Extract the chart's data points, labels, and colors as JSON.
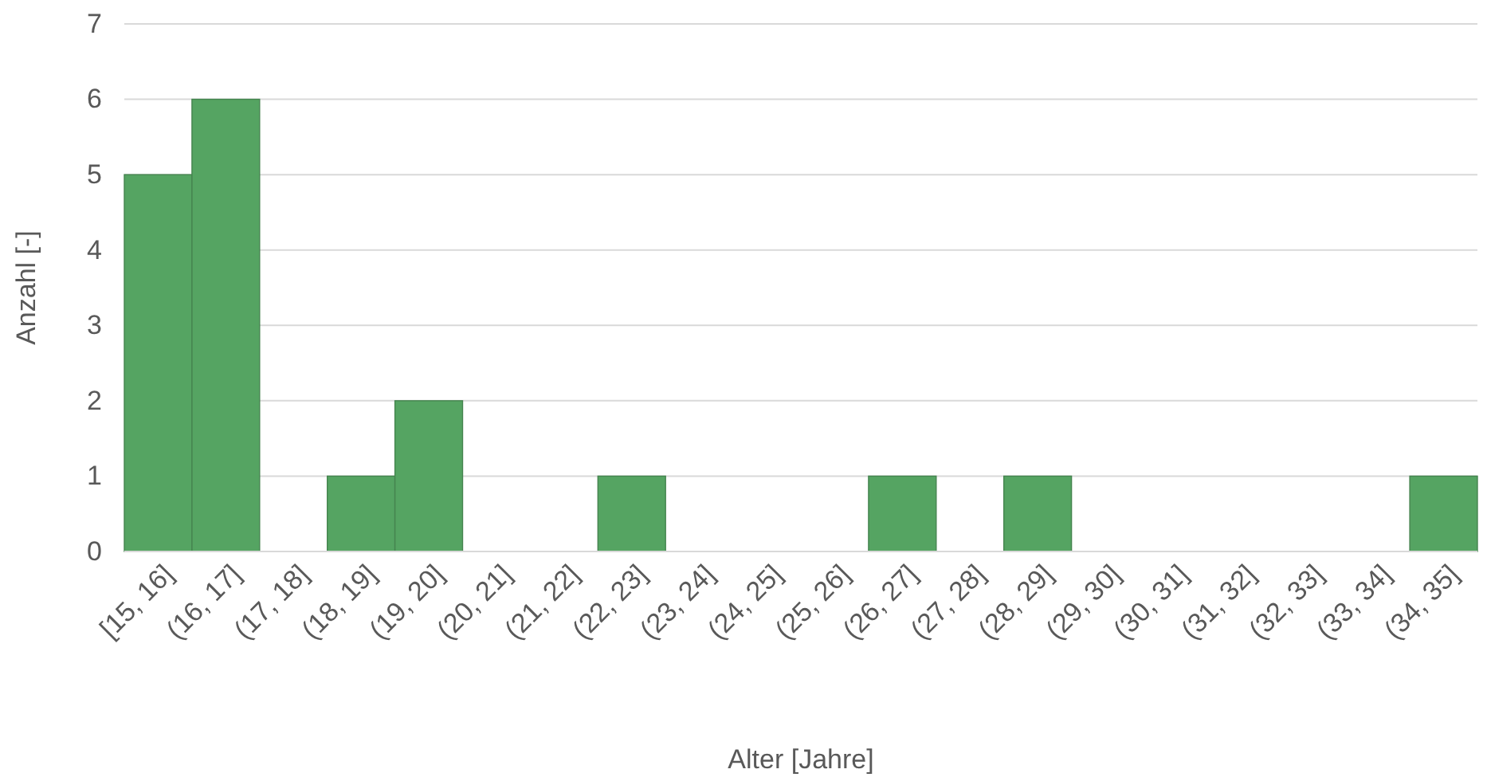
{
  "chart_data": {
    "type": "bar",
    "xlabel": "Alter [Jahre]",
    "ylabel": "Anzahl [-]",
    "categories": [
      "[15, 16]",
      "(16, 17]",
      "(17, 18]",
      "(18, 19]",
      "(19, 20]",
      "(20, 21]",
      "(21, 22]",
      "(22, 23]",
      "(23, 24]",
      "(24, 25]",
      "(25, 26]",
      "(26, 27]",
      "(27, 28]",
      "(28, 29]",
      "(29, 30]",
      "(30, 31]",
      "(31, 32]",
      "(32, 33]",
      "(33, 34]",
      "(34, 35]"
    ],
    "values": [
      5,
      6,
      0,
      1,
      2,
      0,
      0,
      1,
      0,
      0,
      0,
      1,
      0,
      1,
      0,
      0,
      0,
      0,
      0,
      1
    ],
    "color": "#55a462",
    "ylim": [
      0,
      7
    ],
    "yticks": [
      0,
      1,
      2,
      3,
      4,
      5,
      6,
      7
    ],
    "grid": "y"
  }
}
